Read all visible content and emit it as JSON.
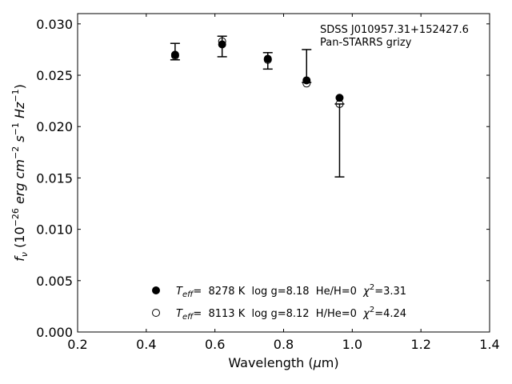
{
  "chart_data": {
    "type": "scatter",
    "annotation": [
      "SDSS J010957.31+152427.6",
      "Pan-STARRS grizy"
    ],
    "xlabel": {
      "pre": "Wavelength (",
      "mu": "μ",
      "post": "m)"
    },
    "ylabel": {
      "f": "f",
      "nu": "ν",
      "open": " (10",
      "e1": "−26",
      "mid1": " erg cm",
      "e2": "−2",
      "mid2": " s",
      "e3": "−1",
      "mid3": " Hz",
      "e4": "−1",
      "close": ")"
    },
    "xlim": [
      0.2,
      1.4
    ],
    "ylim": [
      0.0,
      0.031
    ],
    "xticks": [
      0.2,
      0.4,
      0.6,
      0.8,
      1.0,
      1.2,
      1.4
    ],
    "xtick_labels": [
      "0.2",
      "0.4",
      "0.6",
      "0.8",
      "1.0",
      "1.2",
      "1.4"
    ],
    "yticks": [
      0.0,
      0.005,
      0.01,
      0.015,
      0.02,
      0.025,
      0.03
    ],
    "ytick_labels": [
      "0.000",
      "0.005",
      "0.010",
      "0.015",
      "0.020",
      "0.025",
      "0.030"
    ],
    "observed": [
      {
        "x": 0.484,
        "y": 0.0271,
        "ylo": 0.0265,
        "yhi": 0.0281
      },
      {
        "x": 0.621,
        "y": 0.028,
        "ylo": 0.0268,
        "yhi": 0.0288
      },
      {
        "x": 0.754,
        "y": 0.0266,
        "ylo": 0.0256,
        "yhi": 0.0272
      },
      {
        "x": 0.867,
        "y": 0.0246,
        "ylo": 0.0243,
        "yhi": 0.0275
      },
      {
        "x": 0.963,
        "y": 0.0222,
        "ylo": 0.0151,
        "yhi": 0.0222
      }
    ],
    "series": [
      {
        "marker": "filled-circle",
        "legend": {
          "pre": "T",
          "sub": "eff",
          "text": "=  8278 K  log g=8.18  He/H=0  ",
          "chi": "χ",
          "sup": "2",
          "post": "=3.31"
        },
        "x": [
          0.484,
          0.621,
          0.754,
          0.867,
          0.963
        ],
        "y": [
          0.027,
          0.028,
          0.0266,
          0.0245,
          0.0228
        ]
      },
      {
        "marker": "open-circle",
        "legend": {
          "pre": "T",
          "sub": "eff",
          "text": "=  8113 K  log g=8.12  H/He=0  ",
          "chi": "χ",
          "sup": "2",
          "post": "=4.24"
        },
        "x": [
          0.484,
          0.621,
          0.754,
          0.867,
          0.963
        ],
        "y": [
          0.0269,
          0.0283,
          0.0265,
          0.0242,
          0.0222
        ]
      }
    ],
    "legend_position": "lower-center",
    "grid": false
  }
}
